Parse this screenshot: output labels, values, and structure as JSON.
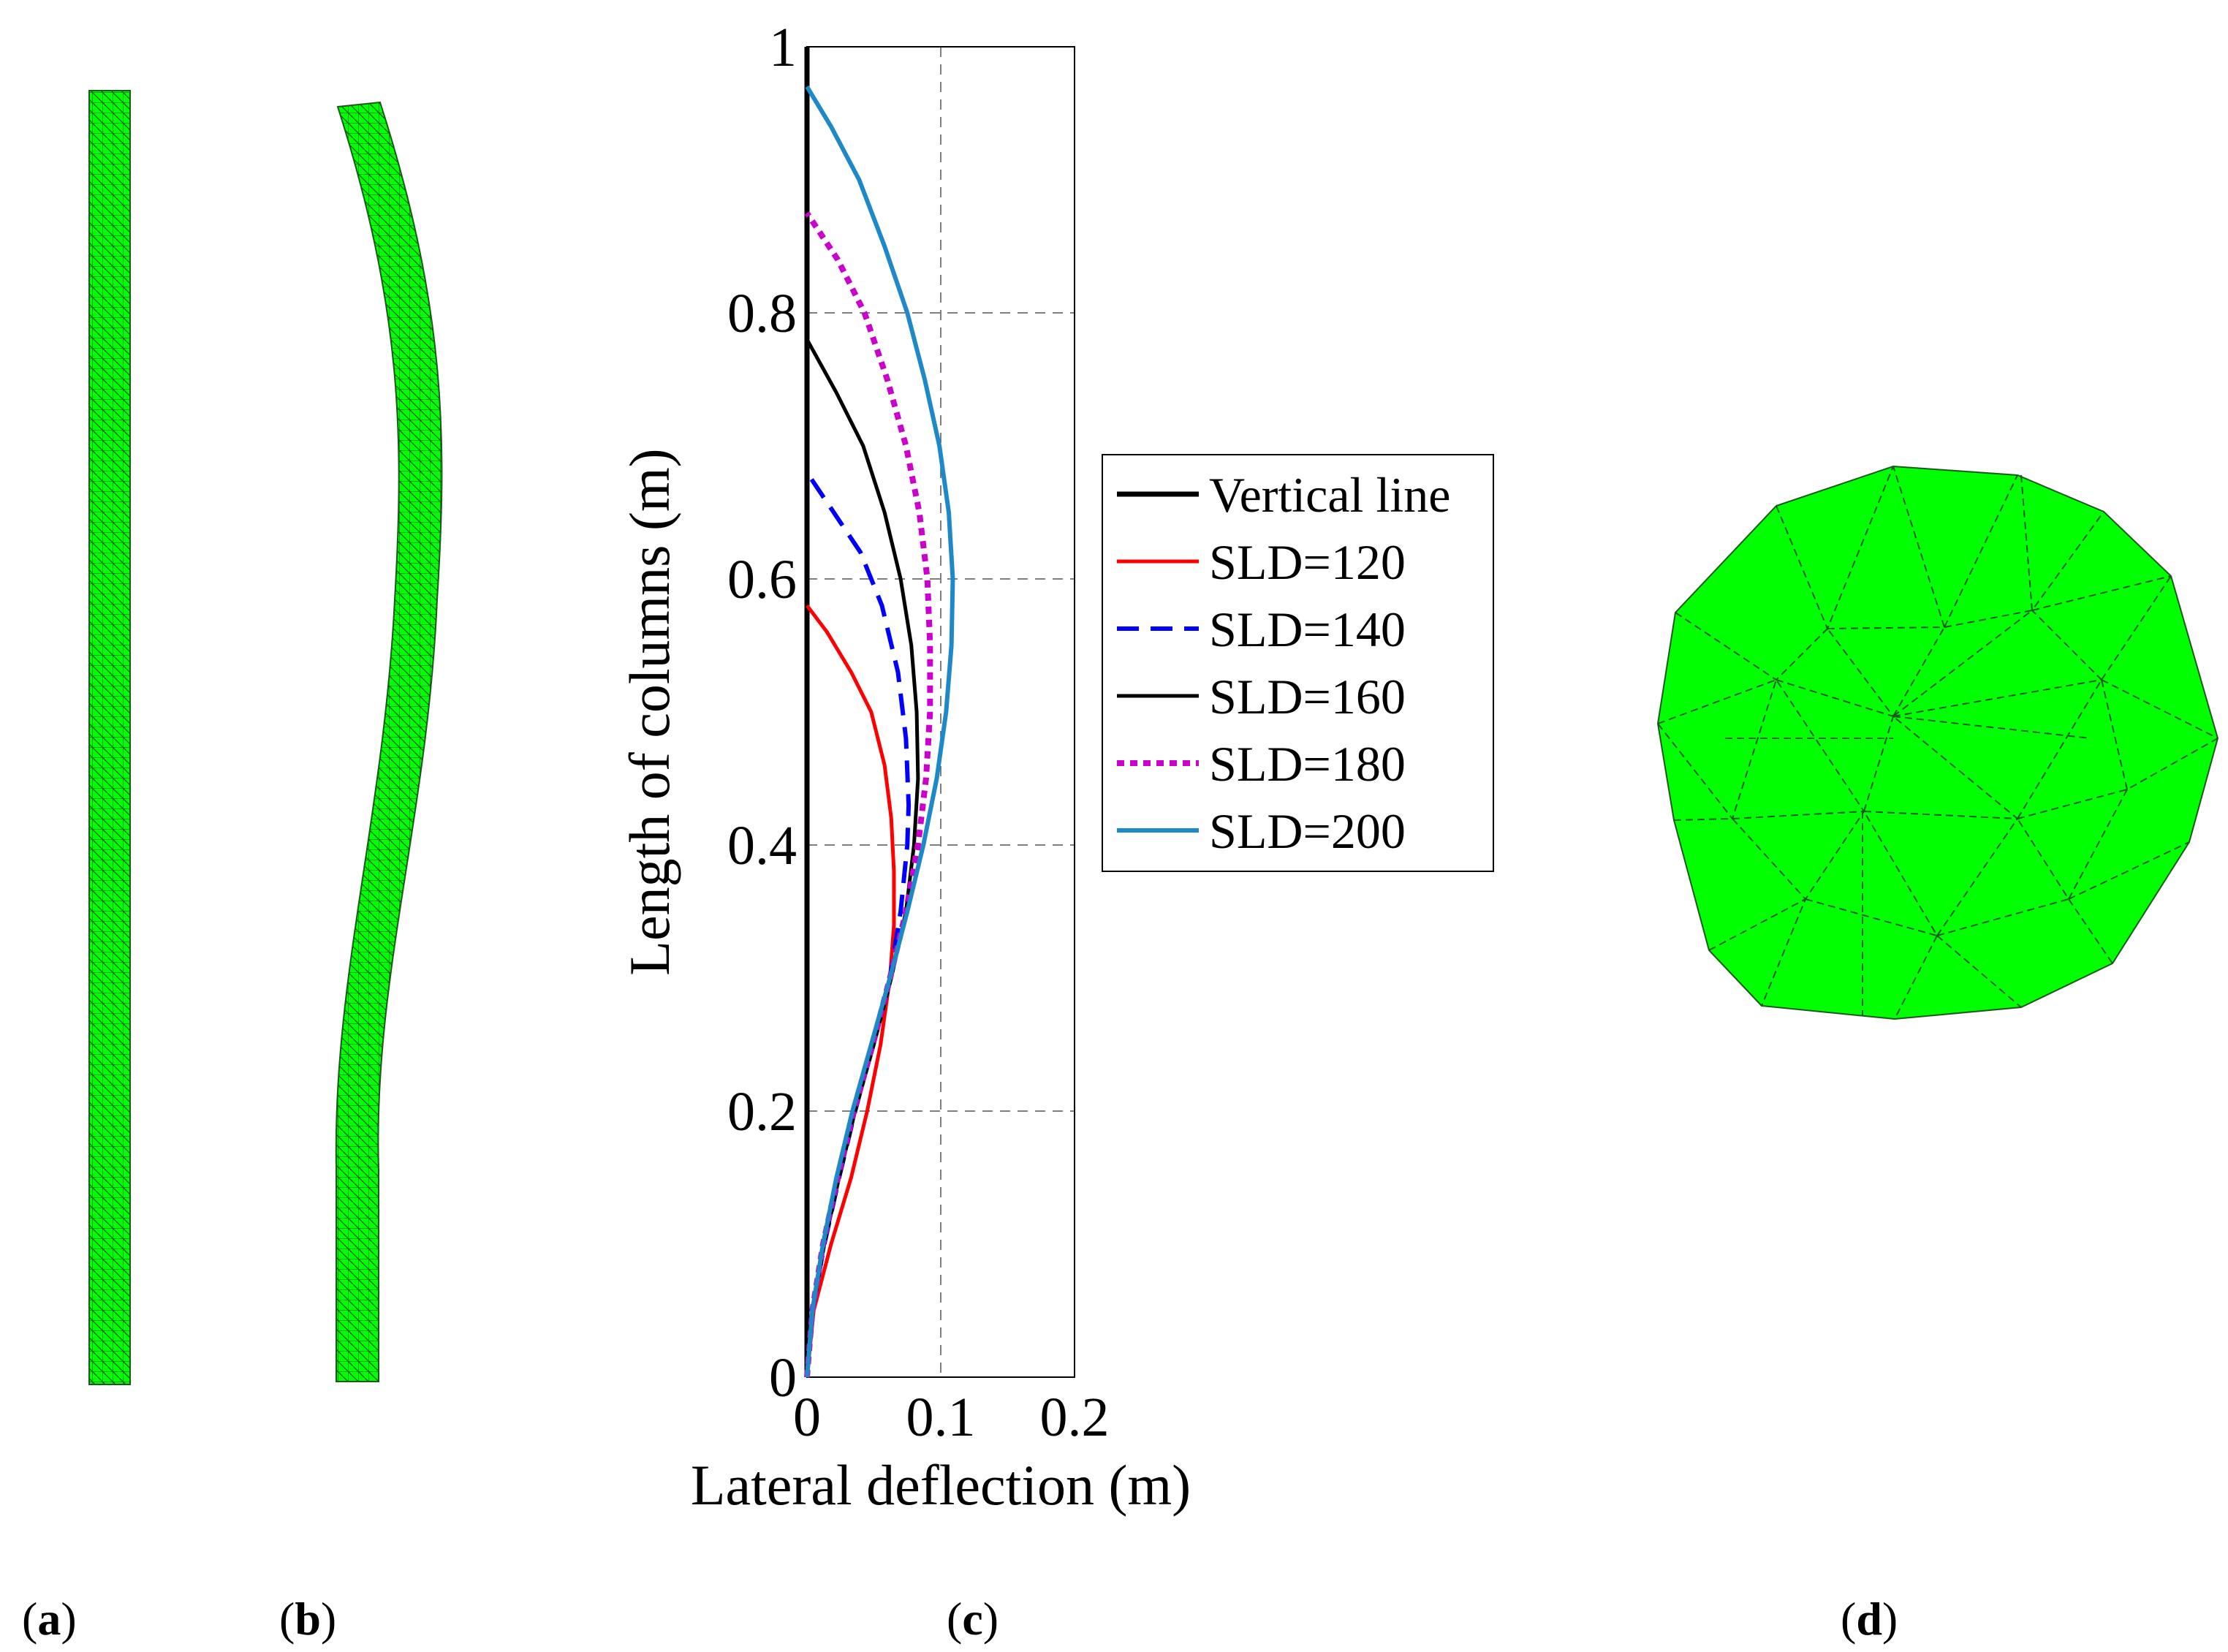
{
  "panels": {
    "a": {
      "label": "a"
    },
    "b": {
      "label": "b"
    },
    "c": {
      "label": "c"
    },
    "d": {
      "label": "d"
    }
  },
  "colors": {
    "mesh_fill": "#00ff00",
    "mesh_line": "#1a5a1a"
  },
  "chart_data": {
    "type": "line",
    "title": "",
    "xlabel": "Lateral deflection (m)",
    "ylabel": "Length of columns (m)",
    "xlim": [
      0,
      0.2
    ],
    "ylim": [
      0,
      1
    ],
    "xticks": [
      0,
      0.1,
      0.2
    ],
    "xtick_labels": [
      "0",
      "0.1",
      "0.2"
    ],
    "yticks": [
      0,
      0.2,
      0.4,
      0.6,
      0.8,
      1
    ],
    "ytick_labels": [
      "0",
      "0.2",
      "0.4",
      "0.6",
      "0.8",
      "1"
    ],
    "grid": true,
    "legend_position": "right, outside plot",
    "series": [
      {
        "name": "Vertical line",
        "color": "#000000",
        "style": "solid",
        "width": 7,
        "points": [
          [
            0,
            0
          ],
          [
            0,
            1
          ]
        ]
      },
      {
        "name": "SLD=120",
        "color": "#ff0000",
        "style": "solid",
        "width": 5,
        "points": [
          [
            0,
            0
          ],
          [
            0.005,
            0.05
          ],
          [
            0.018,
            0.1
          ],
          [
            0.033,
            0.15
          ],
          [
            0.045,
            0.2
          ],
          [
            0.055,
            0.25
          ],
          [
            0.062,
            0.3
          ],
          [
            0.065,
            0.34
          ],
          [
            0.065,
            0.38
          ],
          [
            0.063,
            0.42
          ],
          [
            0.058,
            0.46
          ],
          [
            0.048,
            0.5
          ],
          [
            0.033,
            0.53
          ],
          [
            0.015,
            0.56
          ],
          [
            0,
            0.58
          ]
        ]
      },
      {
        "name": "SLD=140",
        "color": "#0000ff",
        "style": "dashed",
        "width": 6,
        "points": [
          [
            0,
            0
          ],
          [
            0.004,
            0.05
          ],
          [
            0.013,
            0.1
          ],
          [
            0.024,
            0.15
          ],
          [
            0.036,
            0.2
          ],
          [
            0.049,
            0.25
          ],
          [
            0.062,
            0.3
          ],
          [
            0.07,
            0.35
          ],
          [
            0.075,
            0.4
          ],
          [
            0.076,
            0.43
          ],
          [
            0.074,
            0.48
          ],
          [
            0.068,
            0.53
          ],
          [
            0.056,
            0.58
          ],
          [
            0.04,
            0.62
          ],
          [
            0.02,
            0.65
          ],
          [
            0,
            0.68
          ]
        ]
      },
      {
        "name": "SLD=160",
        "color": "#000000",
        "style": "solid",
        "width": 5,
        "points": [
          [
            0,
            0
          ],
          [
            0.004,
            0.05
          ],
          [
            0.013,
            0.1
          ],
          [
            0.024,
            0.15
          ],
          [
            0.036,
            0.2
          ],
          [
            0.05,
            0.25
          ],
          [
            0.063,
            0.3
          ],
          [
            0.074,
            0.35
          ],
          [
            0.08,
            0.4
          ],
          [
            0.083,
            0.45
          ],
          [
            0.082,
            0.5
          ],
          [
            0.078,
            0.55
          ],
          [
            0.07,
            0.6
          ],
          [
            0.058,
            0.65
          ],
          [
            0.042,
            0.7
          ],
          [
            0.022,
            0.74
          ],
          [
            0,
            0.78
          ]
        ]
      },
      {
        "name": "SLD=180",
        "color": "#cc00cc",
        "style": "dotted",
        "width": 8,
        "points": [
          [
            0,
            0
          ],
          [
            0.004,
            0.05
          ],
          [
            0.012,
            0.1
          ],
          [
            0.023,
            0.15
          ],
          [
            0.035,
            0.2
          ],
          [
            0.049,
            0.25
          ],
          [
            0.062,
            0.3
          ],
          [
            0.074,
            0.35
          ],
          [
            0.083,
            0.4
          ],
          [
            0.089,
            0.45
          ],
          [
            0.092,
            0.5
          ],
          [
            0.092,
            0.55
          ],
          [
            0.09,
            0.6
          ],
          [
            0.084,
            0.65
          ],
          [
            0.074,
            0.7
          ],
          [
            0.06,
            0.75
          ],
          [
            0.043,
            0.8
          ],
          [
            0.023,
            0.84
          ],
          [
            0,
            0.875
          ]
        ]
      },
      {
        "name": "SLD=200",
        "color": "#1e88c8",
        "style": "solid",
        "width": 6,
        "points": [
          [
            0,
            0
          ],
          [
            0.004,
            0.05
          ],
          [
            0.012,
            0.1
          ],
          [
            0.022,
            0.15
          ],
          [
            0.034,
            0.2
          ],
          [
            0.048,
            0.25
          ],
          [
            0.062,
            0.3
          ],
          [
            0.075,
            0.35
          ],
          [
            0.087,
            0.4
          ],
          [
            0.097,
            0.45
          ],
          [
            0.104,
            0.5
          ],
          [
            0.108,
            0.55
          ],
          [
            0.109,
            0.6
          ],
          [
            0.106,
            0.65
          ],
          [
            0.099,
            0.7
          ],
          [
            0.088,
            0.75
          ],
          [
            0.075,
            0.8
          ],
          [
            0.058,
            0.85
          ],
          [
            0.039,
            0.9
          ],
          [
            0.018,
            0.94
          ],
          [
            0,
            0.97
          ]
        ]
      }
    ]
  }
}
